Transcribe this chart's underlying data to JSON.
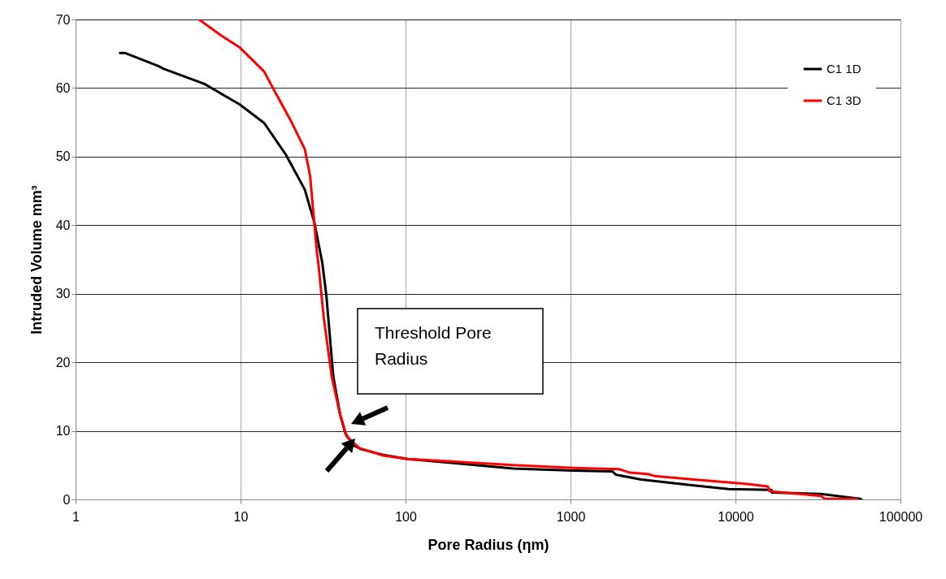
{
  "chart_data": {
    "type": "line",
    "xlabel": "Pore Radius (ηm)",
    "ylabel": "Intruded Volume mm³",
    "log": "x",
    "xlim": [
      1,
      100000
    ],
    "xticks": [
      1,
      10,
      100,
      1000,
      10000,
      100000
    ],
    "ylim": [
      0,
      70
    ],
    "yticks": [
      0,
      10,
      20,
      30,
      40,
      50,
      60,
      70
    ],
    "grid": true,
    "legend": "top right",
    "marker": "none",
    "line_style": "solid",
    "annotations": [
      "Threshold Pore Radius"
    ],
    "series": [
      {
        "name": "C1 1D",
        "color": "#000000",
        "x": [
          1.86,
          2.0,
          3.18,
          3.43,
          6.05,
          9.9,
          13.9,
          18.8,
          24.5,
          28,
          31.3,
          33.1,
          36.5,
          40.1,
          43.2,
          48.4,
          54.2,
          73.3,
          103,
          196,
          452,
          1047,
          1790,
          1890,
          2680,
          5300,
          9100,
          16500,
          16600,
          32900,
          56800,
          58000
        ],
        "values": [
          65.1,
          65.1,
          63.2,
          62.8,
          60.6,
          57.6,
          54.9,
          50.3,
          45.2,
          40.4,
          34.5,
          29.8,
          17.9,
          12.4,
          9.6,
          7.9,
          7.3,
          6.5,
          5.9,
          5.3,
          4.5,
          4.2,
          4.1,
          3.6,
          2.9,
          2.1,
          1.5,
          1.4,
          1.0,
          0.8,
          0.1,
          0
        ]
      },
      {
        "name": "C1 3D",
        "color": "#ff0000",
        "x": [
          5.6,
          7.6,
          9.9,
          13.9,
          16.2,
          20.3,
          24.5,
          26.4,
          29,
          29.6,
          31.9,
          35.7,
          40.1,
          44,
          52.2,
          73.3,
          103,
          452,
          1047,
          1980,
          2290,
          2940,
          3250,
          5580,
          11100,
          15700,
          16100,
          32900,
          34700,
          53900
        ],
        "values": [
          70,
          67.7,
          65.9,
          62.4,
          59.4,
          55.1,
          51.1,
          47.2,
          36.1,
          34.5,
          26.6,
          17.9,
          12.4,
          9.2,
          7.5,
          6.4,
          5.9,
          5.0,
          4.6,
          4.4,
          3.9,
          3.7,
          3.4,
          2.9,
          2.3,
          1.9,
          1.2,
          0.5,
          0.1,
          0.1
        ]
      }
    ]
  }
}
